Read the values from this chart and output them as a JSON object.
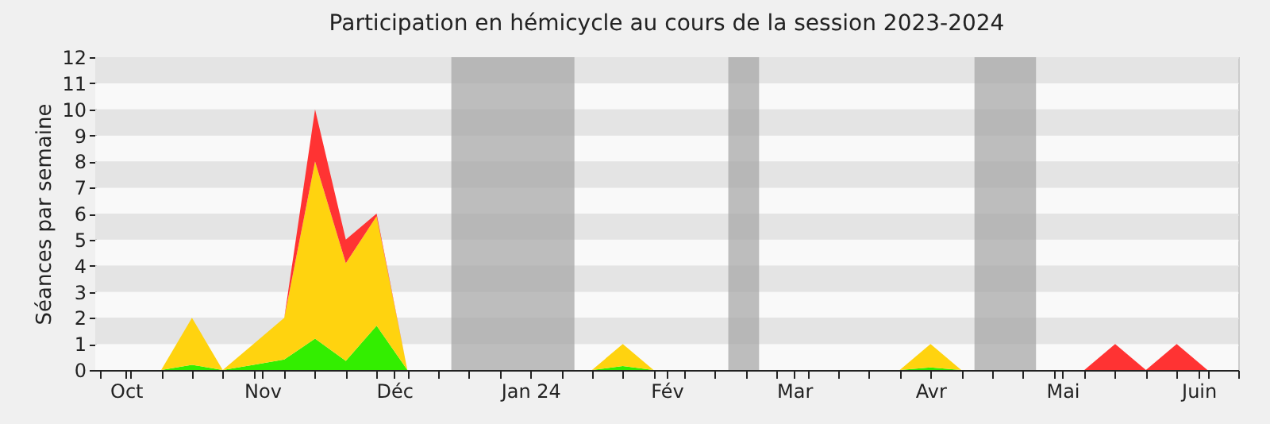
{
  "chart_data": {
    "type": "area",
    "stacked": true,
    "title": "Participation en hémicycle au cours de la session 2023-2024",
    "ylabel": "Séances par semaine",
    "x": [
      "2023-09-25",
      "2023-10-02",
      "2023-10-09",
      "2023-10-16",
      "2023-10-23",
      "2023-10-30",
      "2023-11-06",
      "2023-11-13",
      "2023-11-20",
      "2023-11-27",
      "2023-12-04",
      "2023-12-11",
      "2023-12-18",
      "2023-12-25",
      "2024-01-01",
      "2024-01-08",
      "2024-01-15",
      "2024-01-22",
      "2024-01-29",
      "2024-02-05",
      "2024-02-12",
      "2024-02-19",
      "2024-02-26",
      "2024-03-04",
      "2024-03-11",
      "2024-03-18",
      "2024-03-25",
      "2024-04-01",
      "2024-04-08",
      "2024-04-15",
      "2024-04-22",
      "2024-04-29",
      "2024-05-06",
      "2024-05-13",
      "2024-05-20",
      "2024-05-27",
      "2024-06-03"
    ],
    "series": [
      {
        "color": "#33ee00",
        "values": [
          0,
          0,
          0,
          0.2,
          0,
          0.2,
          0.4,
          1.2,
          0.35,
          1.7,
          0,
          0,
          0,
          0,
          0,
          0,
          0,
          0.15,
          0,
          0,
          0,
          0,
          0,
          0,
          0,
          0,
          0,
          0.1,
          0,
          0,
          0,
          0,
          0,
          0,
          0,
          0,
          0
        ]
      },
      {
        "color": "#ffd30f",
        "values": [
          0,
          0,
          0,
          1.8,
          0,
          0.8,
          1.6,
          6.8,
          3.75,
          4.2,
          0,
          0,
          0,
          0,
          0,
          0,
          0,
          0.85,
          0,
          0,
          0,
          0,
          0,
          0,
          0,
          0,
          0,
          0.9,
          0,
          0,
          0,
          0,
          0,
          0,
          0,
          0,
          0
        ]
      },
      {
        "color": "#ff3333",
        "values": [
          0,
          0,
          0,
          0,
          0,
          0,
          0,
          2,
          0.9,
          0.1,
          0,
          0,
          0,
          0,
          0,
          0,
          0,
          0,
          0,
          0,
          0,
          0,
          0,
          0,
          0,
          0,
          0,
          0,
          0,
          0,
          0,
          0,
          0,
          1,
          0,
          1,
          0
        ]
      }
    ],
    "xlim": [
      "2023-09-24",
      "2024-06-10"
    ],
    "xticks": [
      {
        "value": "2023-09-25",
        "label": null
      },
      {
        "value": "2023-10-01",
        "label": "Oct"
      },
      {
        "value": "2023-10-02",
        "label": null
      },
      {
        "value": "2023-10-09",
        "label": null
      },
      {
        "value": "2023-10-16",
        "label": null
      },
      {
        "value": "2023-10-23",
        "label": null
      },
      {
        "value": "2023-10-30",
        "label": null
      },
      {
        "value": "2023-11-01",
        "label": "Nov"
      },
      {
        "value": "2023-11-06",
        "label": null
      },
      {
        "value": "2023-11-13",
        "label": null
      },
      {
        "value": "2023-11-20",
        "label": null
      },
      {
        "value": "2023-11-27",
        "label": null
      },
      {
        "value": "2023-12-01",
        "label": "Déc"
      },
      {
        "value": "2023-12-04",
        "label": null
      },
      {
        "value": "2023-12-11",
        "label": null
      },
      {
        "value": "2023-12-18",
        "label": null
      },
      {
        "value": "2023-12-25",
        "label": null
      },
      {
        "value": "2024-01-01",
        "label": "Jan 24"
      },
      {
        "value": "2024-01-08",
        "label": null
      },
      {
        "value": "2024-01-15",
        "label": null
      },
      {
        "value": "2024-01-22",
        "label": null
      },
      {
        "value": "2024-01-29",
        "label": null
      },
      {
        "value": "2024-02-01",
        "label": "Fév"
      },
      {
        "value": "2024-02-05",
        "label": null
      },
      {
        "value": "2024-02-12",
        "label": null
      },
      {
        "value": "2024-02-19",
        "label": null
      },
      {
        "value": "2024-02-26",
        "label": null
      },
      {
        "value": "2024-03-01",
        "label": "Mar"
      },
      {
        "value": "2024-03-04",
        "label": null
      },
      {
        "value": "2024-03-11",
        "label": null
      },
      {
        "value": "2024-03-18",
        "label": null
      },
      {
        "value": "2024-03-25",
        "label": null
      },
      {
        "value": "2024-04-01",
        "label": "Avr"
      },
      {
        "value": "2024-04-08",
        "label": null
      },
      {
        "value": "2024-04-15",
        "label": null
      },
      {
        "value": "2024-04-22",
        "label": null
      },
      {
        "value": "2024-04-29",
        "label": null
      },
      {
        "value": "2024-05-01",
        "label": "Mai"
      },
      {
        "value": "2024-05-06",
        "label": null
      },
      {
        "value": "2024-05-13",
        "label": null
      },
      {
        "value": "2024-05-20",
        "label": null
      },
      {
        "value": "2024-05-27",
        "label": null
      },
      {
        "value": "2024-06-01",
        "label": "Juin"
      },
      {
        "value": "2024-06-03",
        "label": null
      },
      {
        "value": "2024-06-10",
        "label": null
      }
    ],
    "ylim": [
      0,
      12
    ],
    "yticks": [
      0,
      1,
      2,
      3,
      4,
      5,
      6,
      7,
      8,
      9,
      10,
      11,
      12
    ],
    "grid": "y",
    "bands": [
      {
        "axis": "x",
        "from": "2023-12-14",
        "to": "2024-01-11",
        "color": "#a8a8a8"
      },
      {
        "axis": "x",
        "from": "2024-02-15",
        "to": "2024-02-22",
        "color": "#a8a8a8"
      },
      {
        "axis": "x",
        "from": "2024-04-11",
        "to": "2024-04-25",
        "color": "#a8a8a8"
      }
    ]
  }
}
